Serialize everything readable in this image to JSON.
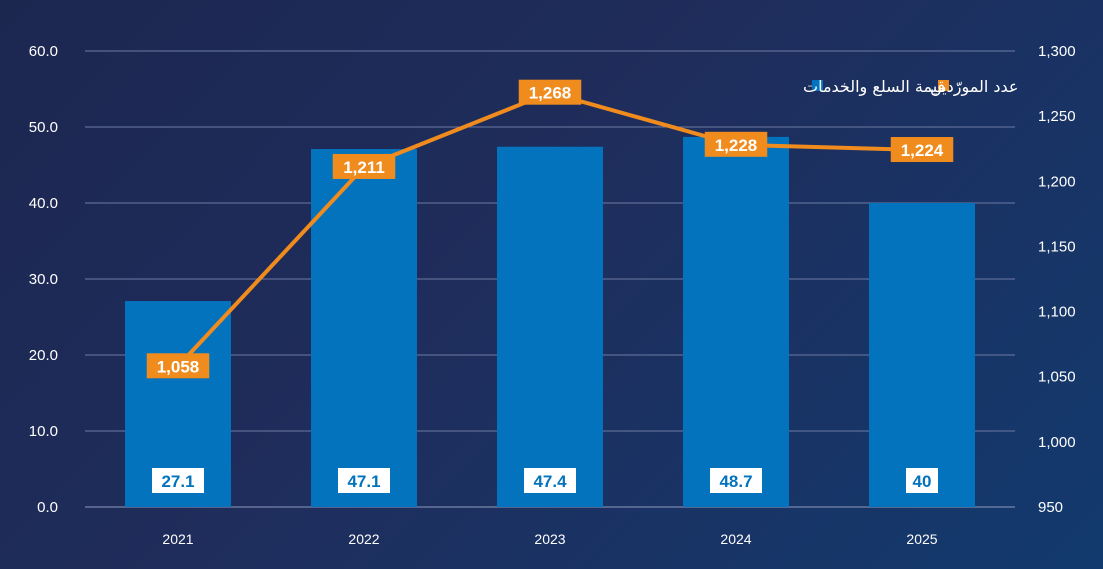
{
  "chart_data": {
    "type": "bar",
    "categories": [
      "2021",
      "2022",
      "2023",
      "2024",
      "2025"
    ],
    "series": [
      {
        "name": "قيمة السلع والخدمات",
        "type": "bar",
        "axis": "left",
        "values": [
          27.1,
          47.1,
          47.4,
          48.7,
          40
        ],
        "labels": [
          "27.1",
          "47.1",
          "47.4",
          "48.7",
          "40"
        ]
      },
      {
        "name": "عدد المورّدين",
        "type": "line",
        "axis": "right",
        "values": [
          1058,
          1211,
          1268,
          1228,
          1224
        ],
        "labels": [
          "1,058",
          "1,211",
          "1,268",
          "1,228",
          "1,224"
        ]
      }
    ],
    "left_axis": {
      "ylim": [
        0,
        60
      ],
      "ticks": [
        "0.0",
        "10.0",
        "20.0",
        "30.0",
        "40.0",
        "50.0",
        "60.0"
      ]
    },
    "right_axis": {
      "ylim": [
        950,
        1300
      ],
      "ticks": [
        "950",
        "1,000",
        "1,050",
        "1,100",
        "1,150",
        "1,200",
        "1,250",
        "1,300"
      ]
    },
    "grid": true,
    "legend_position": "top-right",
    "colors": {
      "bar": "#0473bd",
      "line": "#f08b1d",
      "label_box": "#ffffff",
      "bar_label_text": "#0473bd"
    }
  }
}
